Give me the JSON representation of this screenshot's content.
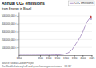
{
  "chart_data": {
    "type": "line",
    "title": "Annual CO₂ emissions",
    "subtitle": "from Energy in Brazil",
    "annotations": [
      "Source: Global Carbon Project",
      "OurWorldInData.org/co2-and-greenhouse-gas-emissions • CC BY"
    ],
    "x": [
      1850,
      1855,
      1860,
      1865,
      1870,
      1875,
      1880,
      1885,
      1890,
      1895,
      1900,
      1905,
      1910,
      1915,
      1920,
      1925,
      1930,
      1935,
      1940,
      1945,
      1950,
      1955,
      1960,
      1965,
      1970,
      1975,
      1980,
      1985,
      1990,
      1995,
      2000,
      2005,
      2010,
      2015,
      2019,
      2020,
      2021
    ],
    "series": [
      {
        "name": "CO₂ emissions",
        "color": "#b09ac8",
        "values": [
          200000,
          250000,
          300000,
          350000,
          400000,
          450000,
          500000,
          600000,
          700000,
          800000,
          1000000,
          1200000,
          1500000,
          1800000,
          2000000,
          2500000,
          3000000,
          4000000,
          5000000,
          6000000,
          8000000,
          12000000,
          18000000,
          28000000,
          45000000,
          70000000,
          110000000,
          150000000,
          190000000,
          240000000,
          290000000,
          360000000,
          420000000,
          460000000,
          490000000,
          450000000,
          480000000
        ]
      }
    ],
    "peak": {
      "x": 2019,
      "y": 490000000,
      "color": "#c04040"
    },
    "xlim": [
      1850,
      2022
    ],
    "xticks": [
      1850,
      1900,
      1920,
      1940,
      1960,
      1980,
      2000,
      2021
    ],
    "ylim": [
      0,
      550000000
    ],
    "yticks": [
      {
        "value": 100000000,
        "label": "100,000,000 t"
      },
      {
        "value": 200000000,
        "label": "200,000,000 t"
      },
      {
        "value": 300000000,
        "label": "300,000,000 t"
      },
      {
        "value": 400000000,
        "label": "400,000,000 t"
      },
      {
        "value": 500000000,
        "label": "500,000,000 t"
      }
    ],
    "grid": true,
    "legend": "top-right"
  }
}
